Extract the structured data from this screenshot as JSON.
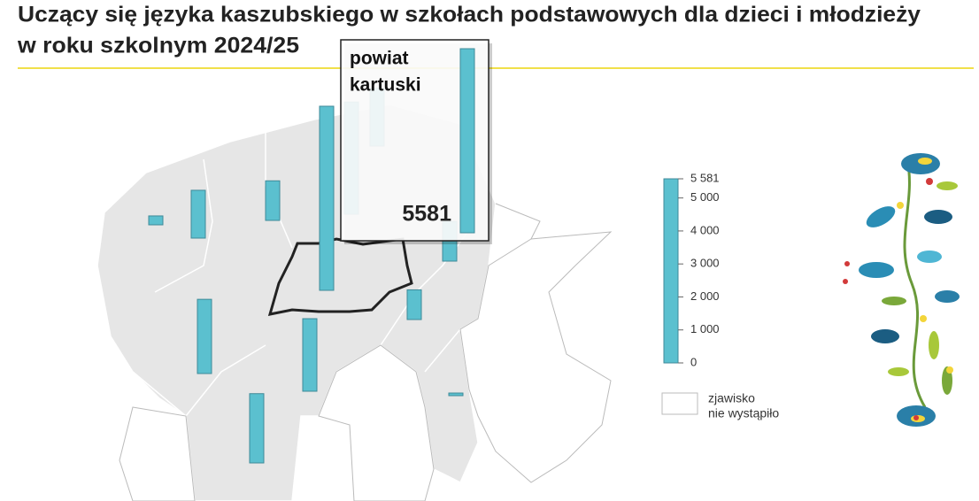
{
  "title": [
    "Uczący się języka kaszubskiego w szkołach podstawowych dla dzieci i młodzieży",
    "w roku szkolnym 2024/25"
  ],
  "popup": {
    "name": [
      "powiat",
      "kartuski"
    ],
    "value": 5581
  },
  "districts": [
    3400,
    1750,
    1200,
    270,
    1450,
    1200,
    900,
    2250,
    2200,
    2100,
    80
  ],
  "legend": {
    "ylim": [
      0,
      5581
    ],
    "yticks": [
      0,
      {
        "value": 1000,
        "label": "1 000"
      },
      {
        "value": 2000,
        "label": "2 000"
      },
      {
        "value": 3000,
        "label": "3 000"
      },
      {
        "value": 4000,
        "label": "4 000"
      },
      {
        "value": 5000,
        "label": "5 000"
      },
      {
        "value": 5581,
        "label": "5 581"
      }
    ],
    "color": "#5bc0cf",
    "note": [
      "zjawisko",
      "nie wystąpiło"
    ]
  }
}
